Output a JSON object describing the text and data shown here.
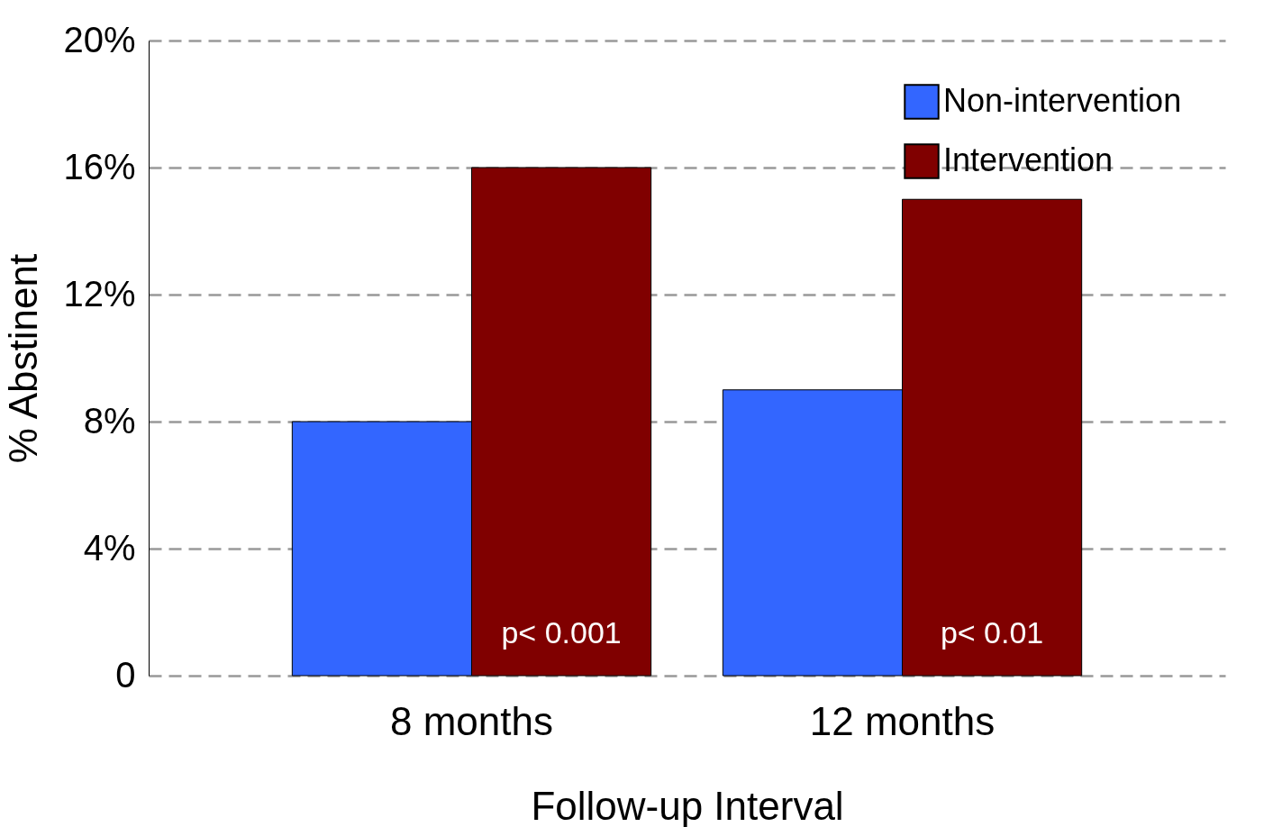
{
  "chart_data": {
    "type": "bar",
    "xlabel": "Follow-up Interval",
    "ylabel": "% Abstinent",
    "categories": [
      "8 months",
      "12 months"
    ],
    "series": [
      {
        "name": "Non-intervention",
        "color": "#3366ff",
        "values": [
          8,
          9
        ]
      },
      {
        "name": "Intervention",
        "color": "#800000",
        "values": [
          16,
          15
        ]
      }
    ],
    "ylim": [
      0,
      20
    ],
    "yticks": [
      {
        "value": 0,
        "label": "0"
      },
      {
        "value": 4,
        "label": "4%"
      },
      {
        "value": 8,
        "label": "8%"
      },
      {
        "value": 12,
        "label": "12%"
      },
      {
        "value": 16,
        "label": "16%"
      },
      {
        "value": 20,
        "label": "20%"
      }
    ],
    "grid": "y",
    "legend": "top right",
    "annotations": [
      {
        "text": "p< 0.001",
        "x": "8 months",
        "y": 1.3
      },
      {
        "text": "p< 0.01",
        "x": "12 months",
        "y": 1.3
      }
    ]
  }
}
